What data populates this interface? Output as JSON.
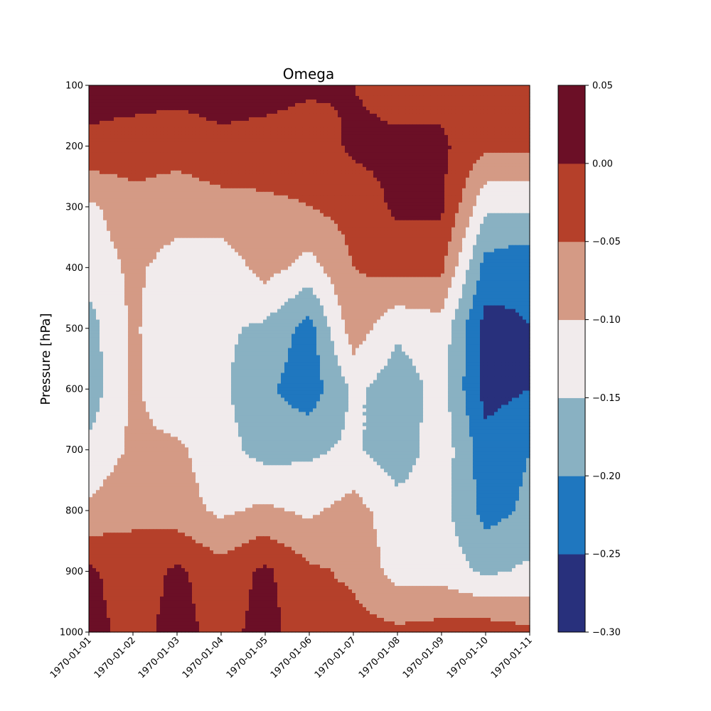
{
  "chart_data": {
    "type": "contourf",
    "title": "Omega",
    "xlabel": "",
    "ylabel": "Pressure [hPa]",
    "x_ticks": [
      "1970-01-01",
      "1970-01-02",
      "1970-01-03",
      "1970-01-04",
      "1970-01-05",
      "1970-01-06",
      "1970-01-07",
      "1970-01-08",
      "1970-01-09",
      "1970-01-10",
      "1970-01-11"
    ],
    "xlim": [
      "1970-01-01",
      "1970-01-11"
    ],
    "y_ticks": [
      100,
      200,
      300,
      400,
      500,
      600,
      700,
      800,
      900,
      1000
    ],
    "ylim": [
      100,
      1000
    ],
    "y_inverted": true,
    "colorbar": {
      "levels": [
        -0.3,
        -0.25,
        -0.2,
        -0.15,
        -0.1,
        -0.05,
        0.0,
        0.05
      ],
      "tick_labels": [
        "−0.30",
        "−0.25",
        "−0.20",
        "−0.15",
        "−0.10",
        "−0.05",
        "0.00",
        "0.05"
      ],
      "colors": [
        "#28307c",
        "#1f77bf",
        "#89b1c2",
        "#f1ebec",
        "#d49a85",
        "#b5402a",
        "#6b0f26"
      ]
    },
    "grid": false,
    "pressure_levels": [
      100,
      200,
      300,
      400,
      500,
      600,
      700,
      800,
      900,
      1000
    ],
    "omega": [
      [
        0.02,
        0.02,
        0.02,
        0.02,
        0.02,
        0.01,
        0.0,
        -0.02,
        -0.02,
        -0.02,
        -0.02
      ],
      [
        -0.01,
        -0.02,
        -0.03,
        -0.01,
        -0.02,
        -0.03,
        0.01,
        0.01,
        0.01,
        -0.04,
        -0.04
      ],
      [
        -0.11,
        -0.07,
        -0.08,
        -0.07,
        -0.06,
        -0.05,
        -0.03,
        0.01,
        0.01,
        -0.14,
        -0.14
      ],
      [
        -0.13,
        -0.09,
        -0.12,
        -0.13,
        -0.08,
        -0.12,
        -0.05,
        -0.03,
        -0.04,
        -0.22,
        -0.24
      ],
      [
        -0.17,
        -0.09,
        -0.15,
        -0.14,
        -0.16,
        -0.22,
        -0.07,
        -0.14,
        -0.12,
        -0.27,
        -0.25
      ],
      [
        -0.18,
        -0.09,
        -0.14,
        -0.14,
        -0.19,
        -0.23,
        -0.14,
        -0.18,
        -0.13,
        -0.27,
        -0.25
      ],
      [
        -0.14,
        -0.09,
        -0.09,
        -0.13,
        -0.17,
        -0.16,
        -0.14,
        -0.18,
        -0.12,
        -0.23,
        -0.2
      ],
      [
        -0.09,
        -0.06,
        -0.08,
        -0.11,
        -0.09,
        -0.11,
        -0.08,
        -0.13,
        -0.13,
        -0.22,
        -0.19
      ],
      [
        0.01,
        -0.03,
        0.01,
        -0.03,
        0.01,
        -0.04,
        -0.06,
        -0.12,
        -0.12,
        -0.16,
        -0.14
      ],
      [
        0.02,
        -0.02,
        0.02,
        -0.02,
        0.02,
        -0.03,
        -0.03,
        -0.04,
        -0.03,
        -0.02,
        -0.04
      ]
    ]
  }
}
